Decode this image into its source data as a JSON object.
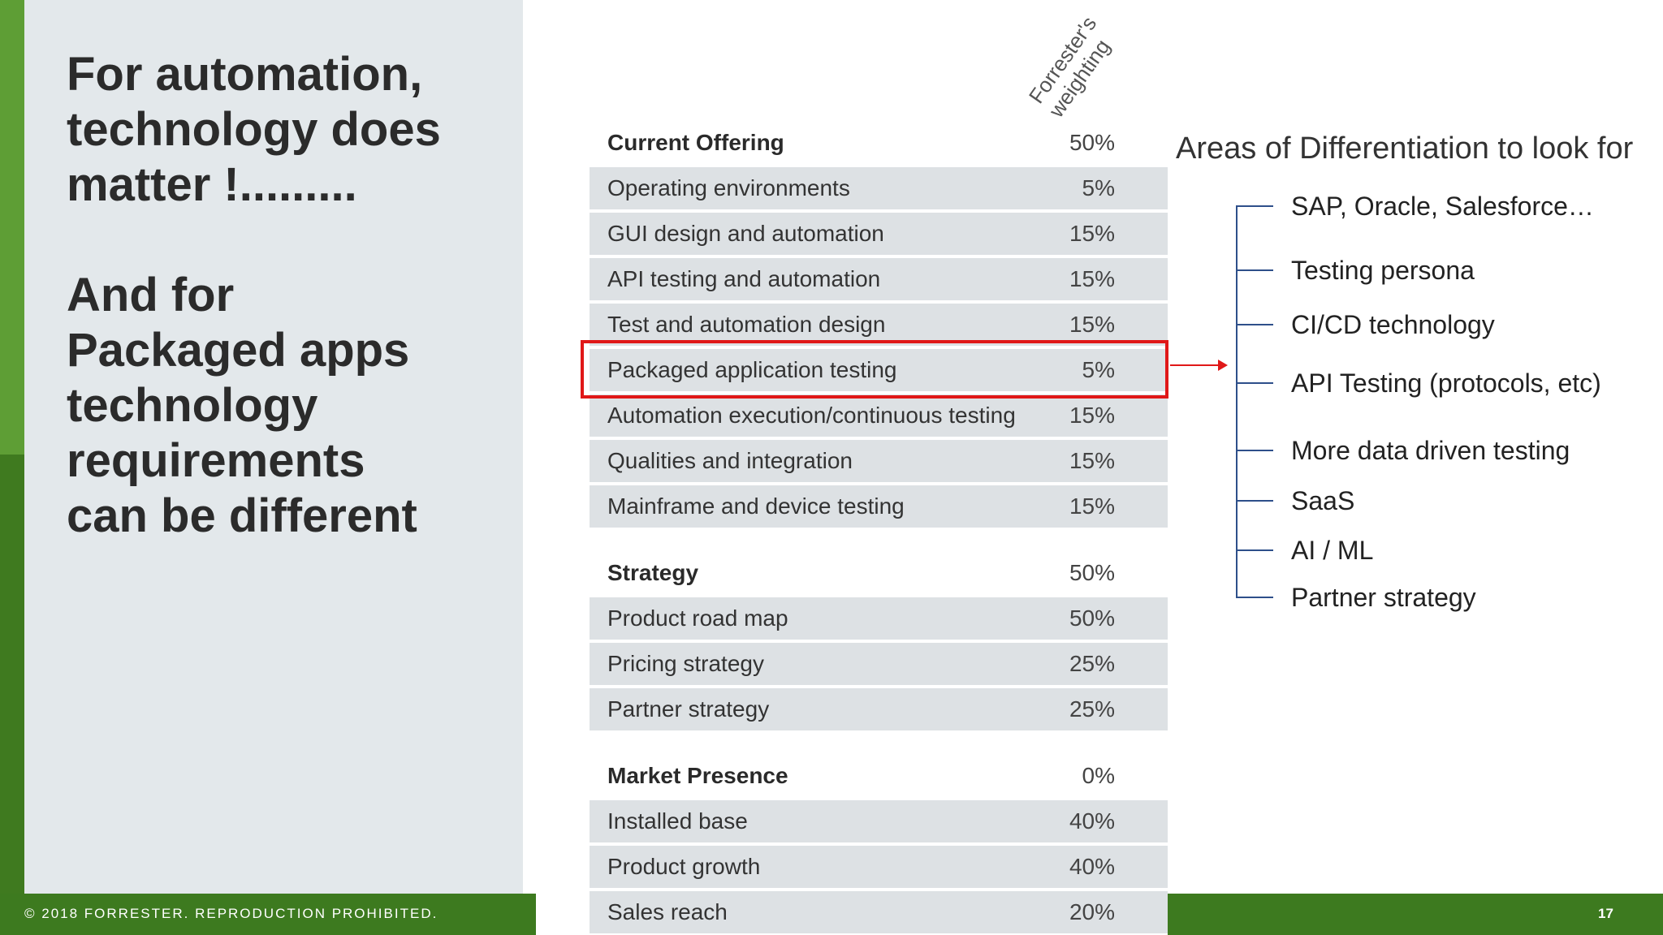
{
  "left": {
    "heading1": [
      "For automation,",
      "technology does",
      "matter !........."
    ],
    "heading2": [
      "And for",
      "Packaged apps",
      "technology",
      "requirements",
      "can be different"
    ]
  },
  "footer": {
    "copyright": "© 2018 FORRESTER. REPRODUCTION PROHIBITED.",
    "page_number": "17"
  },
  "table": {
    "weight_header": "Forrester's\nweighting",
    "rows": [
      {
        "label": "Current Offering",
        "pct": "50%",
        "header": true
      },
      {
        "label": "Operating environments",
        "pct": "5%"
      },
      {
        "label": "GUI design and automation",
        "pct": "15%"
      },
      {
        "label": "API testing and automation",
        "pct": "15%"
      },
      {
        "label": "Test and automation design",
        "pct": "15%"
      },
      {
        "label": "Packaged application testing",
        "pct": "5%"
      },
      {
        "label": "Automation execution/continuous testing",
        "pct": "15%"
      },
      {
        "label": "Qualities and integration",
        "pct": "15%"
      },
      {
        "label": "Mainframe and device testing",
        "pct": "15%"
      },
      {
        "label": "Strategy",
        "pct": "50%",
        "header": true
      },
      {
        "label": "Product road map",
        "pct": "50%"
      },
      {
        "label": "Pricing strategy",
        "pct": "25%"
      },
      {
        "label": "Partner strategy",
        "pct": "25%"
      },
      {
        "label": "Market Presence",
        "pct": "0%",
        "header": true
      },
      {
        "label": "Installed base",
        "pct": "40%"
      },
      {
        "label": "Product growth",
        "pct": "40%"
      },
      {
        "label": "Sales reach",
        "pct": "20%"
      }
    ]
  },
  "differentiation": {
    "title": "Areas of Differentiation to look for",
    "items": [
      "SAP, Oracle, Salesforce…",
      "Testing persona",
      "CI/CD technology",
      "API Testing (protocols, etc)",
      "More data driven testing",
      "SaaS",
      "AI / ML",
      "Partner strategy"
    ]
  },
  "colors": {
    "accent_green": "#3d7a1f",
    "highlight_red": "#e01818",
    "tree_blue": "#2e4f8a"
  }
}
